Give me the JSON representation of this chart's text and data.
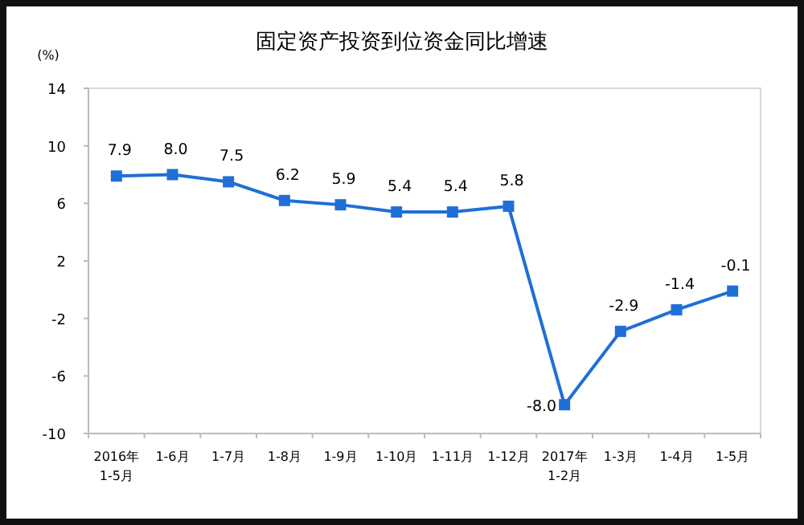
{
  "chart_data": {
    "type": "line",
    "title": "固定资产投资到位资金同比增速",
    "ylabel": "(%)",
    "categories": [
      "2016年\n1-5月",
      "1-6月",
      "1-7月",
      "1-8月",
      "1-9月",
      "1-10月",
      "1-11月",
      "1-12月",
      "2017年\n1-2月",
      "1-3月",
      "1-4月",
      "1-5月"
    ],
    "series": [
      {
        "color": "#1f6fd6",
        "values": [
          7.9,
          8.0,
          7.5,
          6.2,
          5.9,
          5.4,
          5.4,
          5.8,
          -8.0,
          -2.9,
          -1.4,
          -0.1
        ],
        "value_labels": [
          "7.9",
          "8.0",
          "7.5",
          "6.2",
          "5.9",
          "5.4",
          "5.4",
          "5.8",
          "-8.0",
          "-2.9",
          "-1.4",
          "-0.1"
        ]
      }
    ],
    "ylim": [
      -10,
      14
    ],
    "yticks": [
      -10,
      -6,
      -2,
      2,
      6,
      10,
      14
    ],
    "grid": false,
    "marker": "square",
    "line_style": "solid"
  }
}
